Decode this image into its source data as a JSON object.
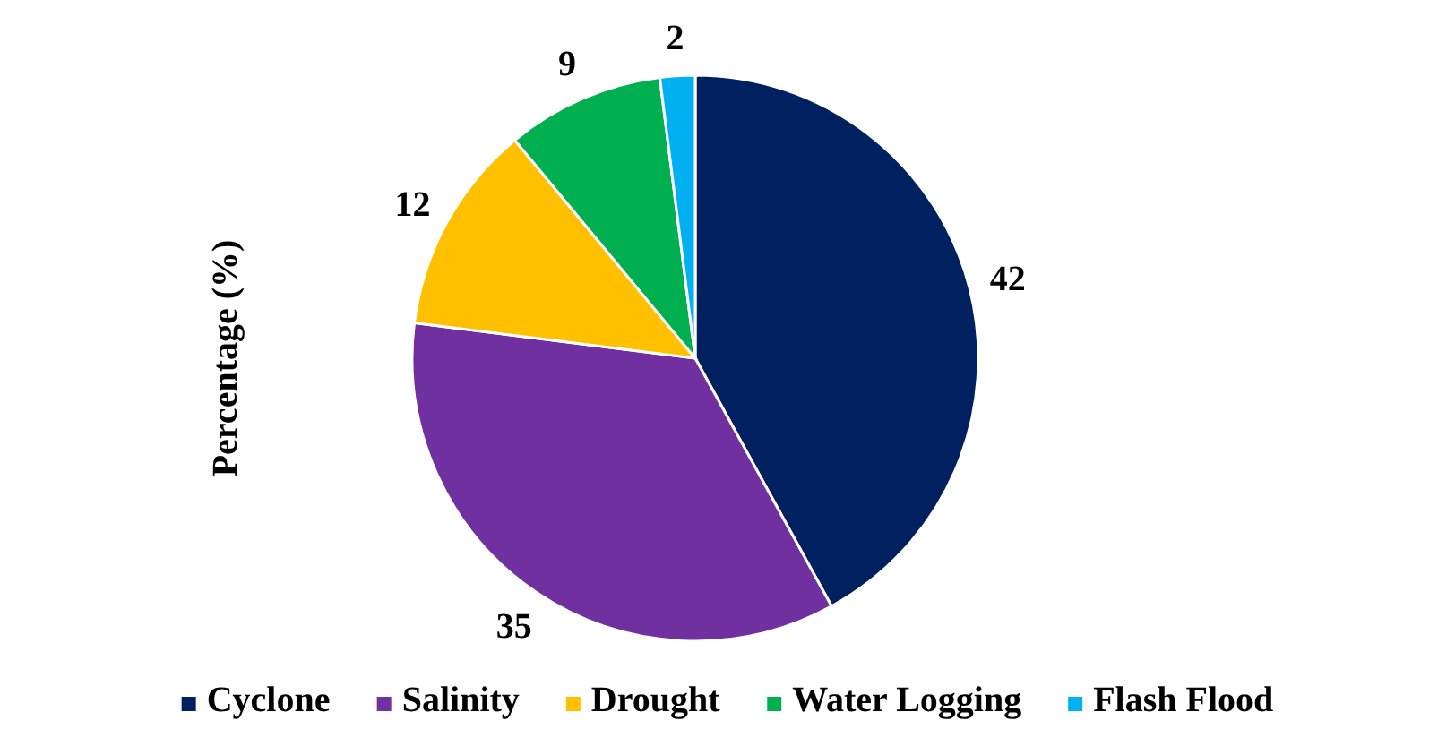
{
  "chart_data": {
    "type": "pie",
    "ylabel": "Percentage (%)",
    "categories": [
      "Cyclone",
      "Salinity",
      "Drought",
      "Water Logging",
      "Flash Flood"
    ],
    "values": [
      42,
      35,
      12,
      9,
      2
    ],
    "colors": [
      "#002060",
      "#7030a0",
      "#ffc000",
      "#00b050",
      "#00b0f0"
    ],
    "data_labels": true,
    "legend": "bottom"
  }
}
